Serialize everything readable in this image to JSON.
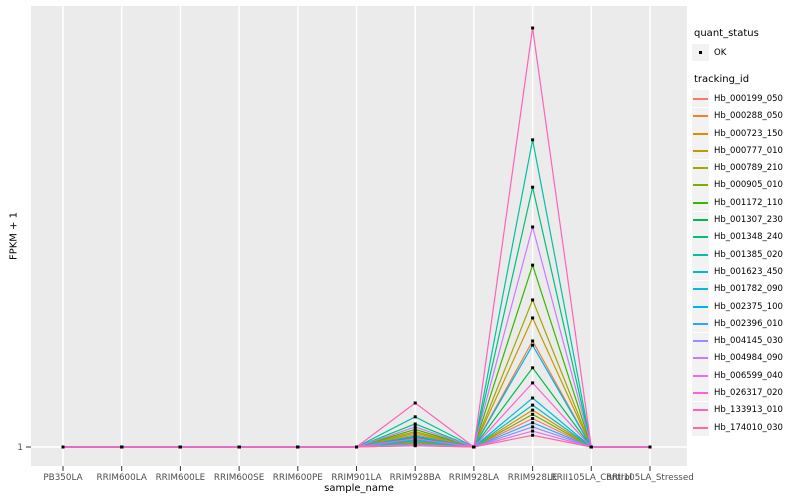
{
  "figure": {
    "x_axis_title": "sample_name",
    "y_axis_title": "FPKM + 1"
  },
  "legend": {
    "quant_status_title": "quant_status",
    "quant_status_items": [
      {
        "label": "OK",
        "marker": "point-icon"
      }
    ],
    "tracking_id_title": "tracking_id"
  },
  "colors": {
    "panel_background": "#EBEBEB",
    "gridline": "#FFFFFF",
    "tick": "#333333",
    "tick_label": "#4D4D4D",
    "point": "#000000",
    "legend_key_fill": "#F2F2F2"
  },
  "chart_data": {
    "type": "line",
    "title": "",
    "xlabel": "sample_name",
    "ylabel": "FPKM + 1",
    "x_categories": [
      "PB350LA",
      "RRIM600LA",
      "RRIM600LE",
      "RRIM600SE",
      "RRIM600PE",
      "RRIM901LA",
      "RRIM928BA",
      "RRIM928LA",
      "RRIM928LE",
      "RRII105LA_Control",
      "RRII105LA_Stressed"
    ],
    "y_tick_labels": [
      "1"
    ],
    "grid": "major gridlines white on gray panel",
    "legend_position": "right",
    "value_encoding": "values_rel are FPKM+1 heights as fraction of the tallest peak (at RRIM928LE); baseline 0 corresponds to FPKM + 1 = 1, the only labeled y break",
    "quant_status": "OK (black point at every sample for every tracking_id)",
    "series": [
      {
        "name": "Hb_000199_050",
        "color": "#F8766D",
        "z": 0,
        "values_rel": [
          0,
          0,
          0,
          0,
          0,
          0,
          0.009,
          0,
          0.068,
          0,
          0
        ]
      },
      {
        "name": "Hb_000288_050",
        "color": "#EA8331",
        "z": 0,
        "values_rel": [
          0,
          0,
          0,
          0,
          0,
          0,
          0.029,
          0,
          0.253,
          0,
          0
        ]
      },
      {
        "name": "Hb_000723_150",
        "color": "#D89000",
        "z": 0,
        "values_rel": [
          0,
          0,
          0,
          0,
          0,
          0,
          0.013,
          0,
          0.088,
          0,
          0
        ]
      },
      {
        "name": "Hb_000777_010",
        "color": "#C09B00",
        "z": 0,
        "values_rel": [
          0,
          0,
          0,
          0,
          0,
          0,
          0.033,
          0,
          0.308,
          0,
          0
        ]
      },
      {
        "name": "Hb_000789_210",
        "color": "#A3A500",
        "z": 0,
        "values_rel": [
          0,
          0,
          0,
          0,
          0,
          0,
          0.037,
          0,
          0.351,
          0,
          0
        ]
      },
      {
        "name": "Hb_000905_010",
        "color": "#7CAE00",
        "z": 0,
        "values_rel": [
          0,
          0,
          0,
          0,
          0,
          0,
          0.011,
          0,
          0.078,
          0,
          0
        ]
      },
      {
        "name": "Hb_001172_110",
        "color": "#39B600",
        "z": 0,
        "values_rel": [
          0,
          0,
          0,
          0,
          0,
          0,
          0.042,
          0,
          0.434,
          0,
          0
        ]
      },
      {
        "name": "Hb_001307_230",
        "color": "#00BB4E",
        "z": 0,
        "values_rel": [
          0,
          0,
          0,
          0,
          0,
          0,
          0.023,
          0,
          0.189,
          0,
          0
        ]
      },
      {
        "name": "Hb_001348_240",
        "color": "#00BF7D",
        "z": 0,
        "values_rel": [
          0,
          0,
          0,
          0,
          0,
          0,
          0.055,
          0,
          0.62,
          0,
          0
        ]
      },
      {
        "name": "Hb_001385_020",
        "color": "#00C1A3",
        "z": 0,
        "values_rel": [
          0,
          0,
          0,
          0,
          0,
          0,
          0.072,
          0,
          0.733,
          0,
          0
        ]
      },
      {
        "name": "Hb_001623_450",
        "color": "#00BFC4",
        "z": 0,
        "values_rel": [
          0,
          0,
          0,
          0,
          0,
          0,
          0.015,
          0,
          0.1,
          0,
          0
        ]
      },
      {
        "name": "Hb_001782_090",
        "color": "#00BAE0",
        "z": 0,
        "values_rel": [
          0,
          0,
          0,
          0,
          0,
          0,
          0.017,
          0,
          0.117,
          0,
          0
        ]
      },
      {
        "name": "Hb_002375_100",
        "color": "#00B0F6",
        "z": 0,
        "values_rel": [
          0,
          0,
          0,
          0,
          0,
          0,
          0.026,
          0,
          0.243,
          0,
          0
        ]
      },
      {
        "name": "Hb_002396_010",
        "color": "#35A2FF",
        "z": 0,
        "values_rel": [
          0,
          0,
          0,
          0,
          0,
          0,
          0.007,
          0,
          0.058,
          0,
          0
        ]
      },
      {
        "name": "Hb_004145_030",
        "color": "#9590FF",
        "z": 0,
        "values_rel": [
          0,
          0,
          0,
          0,
          0,
          0,
          0.006,
          0,
          0.048,
          0,
          0
        ]
      },
      {
        "name": "Hb_004984_090",
        "color": "#C77CFF",
        "z": 0,
        "values_rel": [
          0,
          0,
          0,
          0,
          0,
          0,
          0.048,
          0,
          0.525,
          0,
          0
        ]
      },
      {
        "name": "Hb_006599_040",
        "color": "#E76BF3",
        "z": 0,
        "values_rel": [
          0,
          0,
          0,
          0,
          0,
          0,
          0.004,
          0,
          0.038,
          0,
          0
        ]
      },
      {
        "name": "Hb_026317_020",
        "color": "#FA62DB",
        "z": 0,
        "values_rel": [
          0,
          0,
          0,
          0,
          0,
          0,
          0.02,
          0,
          0.153,
          0,
          0
        ]
      },
      {
        "name": "Hb_133913_010",
        "color": "#FF62BC",
        "z": 1,
        "values_rel": [
          0,
          0,
          0,
          0,
          0,
          0,
          0.105,
          0,
          1.0,
          0,
          0
        ]
      },
      {
        "name": "Hb_174010_030",
        "color": "#FF6A98",
        "z": 0,
        "values_rel": [
          0,
          0,
          0,
          0,
          0,
          0,
          0.003,
          0,
          0.028,
          0,
          0
        ]
      }
    ]
  }
}
